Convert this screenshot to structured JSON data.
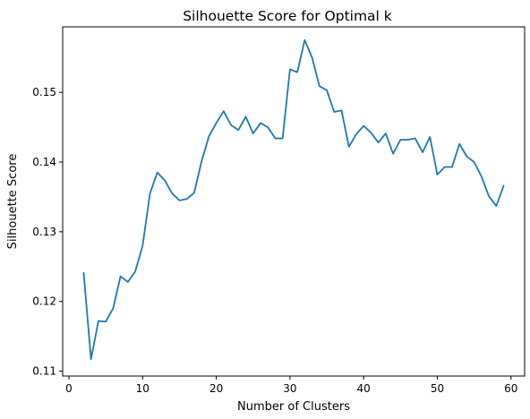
{
  "chart_data": {
    "type": "line",
    "title": "Silhouette Score for Optimal k",
    "xlabel": "Number of Clusters",
    "ylabel": "Silhouette Score",
    "xlim": [
      -0.85,
      61.85
    ],
    "ylim": [
      0.1093,
      0.1594
    ],
    "xticks": [
      0,
      10,
      20,
      30,
      40,
      50,
      60
    ],
    "yticks": [
      0.11,
      0.12,
      0.13,
      0.14,
      0.15
    ],
    "ytick_labels": [
      "0.11",
      "0.12",
      "0.13",
      "0.14",
      "0.15"
    ],
    "grid": false,
    "line_color": "#1f77b4",
    "series": [
      {
        "x": [
          2,
          3,
          4,
          5,
          6,
          7,
          8,
          9,
          10,
          11,
          12,
          13,
          14,
          15,
          16,
          17,
          18,
          19,
          20,
          21,
          22,
          23,
          24,
          25,
          26,
          27,
          28,
          29,
          30,
          31,
          32,
          33,
          34,
          35,
          36,
          37,
          38,
          39,
          40,
          41,
          42,
          43,
          44,
          45,
          46,
          47,
          48,
          49,
          50,
          51,
          52,
          53,
          54,
          55,
          56,
          57,
          58,
          59
        ],
        "values": [
          0.1241,
          0.1117,
          0.1172,
          0.1171,
          0.119,
          0.1236,
          0.1228,
          0.1243,
          0.128,
          0.1355,
          0.1385,
          0.1374,
          0.1355,
          0.1345,
          0.1347,
          0.1356,
          0.1401,
          0.1437,
          0.1456,
          0.1473,
          0.1453,
          0.1446,
          0.1465,
          0.1441,
          0.1456,
          0.145,
          0.1434,
          0.1434,
          0.1533,
          0.1529,
          0.1575,
          0.155,
          0.1509,
          0.1503,
          0.1472,
          0.1474,
          0.1422,
          0.144,
          0.1452,
          0.1442,
          0.1428,
          0.1441,
          0.1412,
          0.1432,
          0.1432,
          0.1434,
          0.1414,
          0.1436,
          0.1382,
          0.1393,
          0.1393,
          0.1426,
          0.1408,
          0.14,
          0.1379,
          0.1351,
          0.1337,
          0.1366
        ]
      }
    ]
  }
}
